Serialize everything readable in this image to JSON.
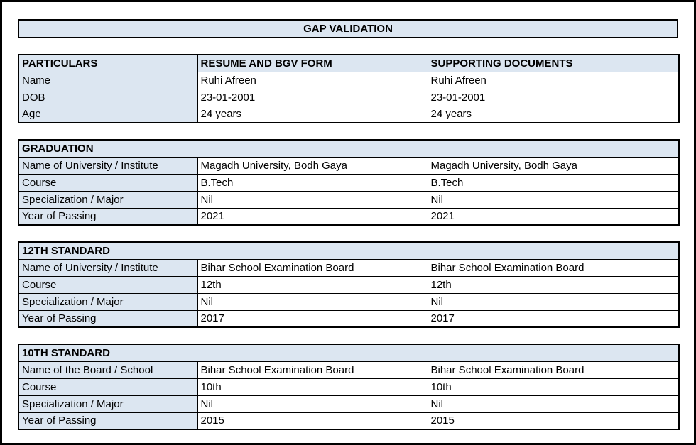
{
  "page": {
    "title": "GAP VALIDATION"
  },
  "colors": {
    "header_fill": "#dce6f1",
    "border": "#000000",
    "background": "#ffffff"
  },
  "summary_table": {
    "headers": [
      "PARTICULARS",
      "RESUME AND BGV FORM",
      "SUPPORTING DOCUMENTS"
    ],
    "rows": [
      {
        "label": "Name",
        "resume": "Ruhi Afreen",
        "supporting": "Ruhi Afreen"
      },
      {
        "label": "DOB",
        "resume": "23-01-2001",
        "supporting": "23-01-2001"
      },
      {
        "label": "Age",
        "resume": "24 years",
        "supporting": "24 years"
      }
    ]
  },
  "sections": [
    {
      "title": "GRADUATION",
      "rows": [
        {
          "label": "Name of University / Institute",
          "resume": "Magadh University, Bodh Gaya",
          "supporting": "Magadh University, Bodh Gaya"
        },
        {
          "label": "Course",
          "resume": "B.Tech",
          "supporting": "B.Tech"
        },
        {
          "label": "Specialization / Major",
          "resume": "Nil",
          "supporting": "Nil"
        },
        {
          "label": "Year of Passing",
          "resume": "2021",
          "supporting": "2021"
        }
      ]
    },
    {
      "title": "12TH STANDARD",
      "rows": [
        {
          "label": "Name of University / Institute",
          "resume": "Bihar School Examination Board",
          "supporting": "Bihar School Examination Board"
        },
        {
          "label": "Course",
          "resume": "12th",
          "supporting": "12th"
        },
        {
          "label": "Specialization / Major",
          "resume": "Nil",
          "supporting": "Nil"
        },
        {
          "label": "Year of Passing",
          "resume": "2017",
          "supporting": "2017"
        }
      ]
    },
    {
      "title": "10TH STANDARD",
      "rows": [
        {
          "label": "Name of the Board / School",
          "resume": "Bihar School Examination Board",
          "supporting": "Bihar School Examination Board"
        },
        {
          "label": "Course",
          "resume": "10th",
          "supporting": "10th"
        },
        {
          "label": "Specialization / Major",
          "resume": "Nil",
          "supporting": "Nil"
        },
        {
          "label": "Year of Passing",
          "resume": "2015",
          "supporting": "2015"
        }
      ]
    }
  ]
}
